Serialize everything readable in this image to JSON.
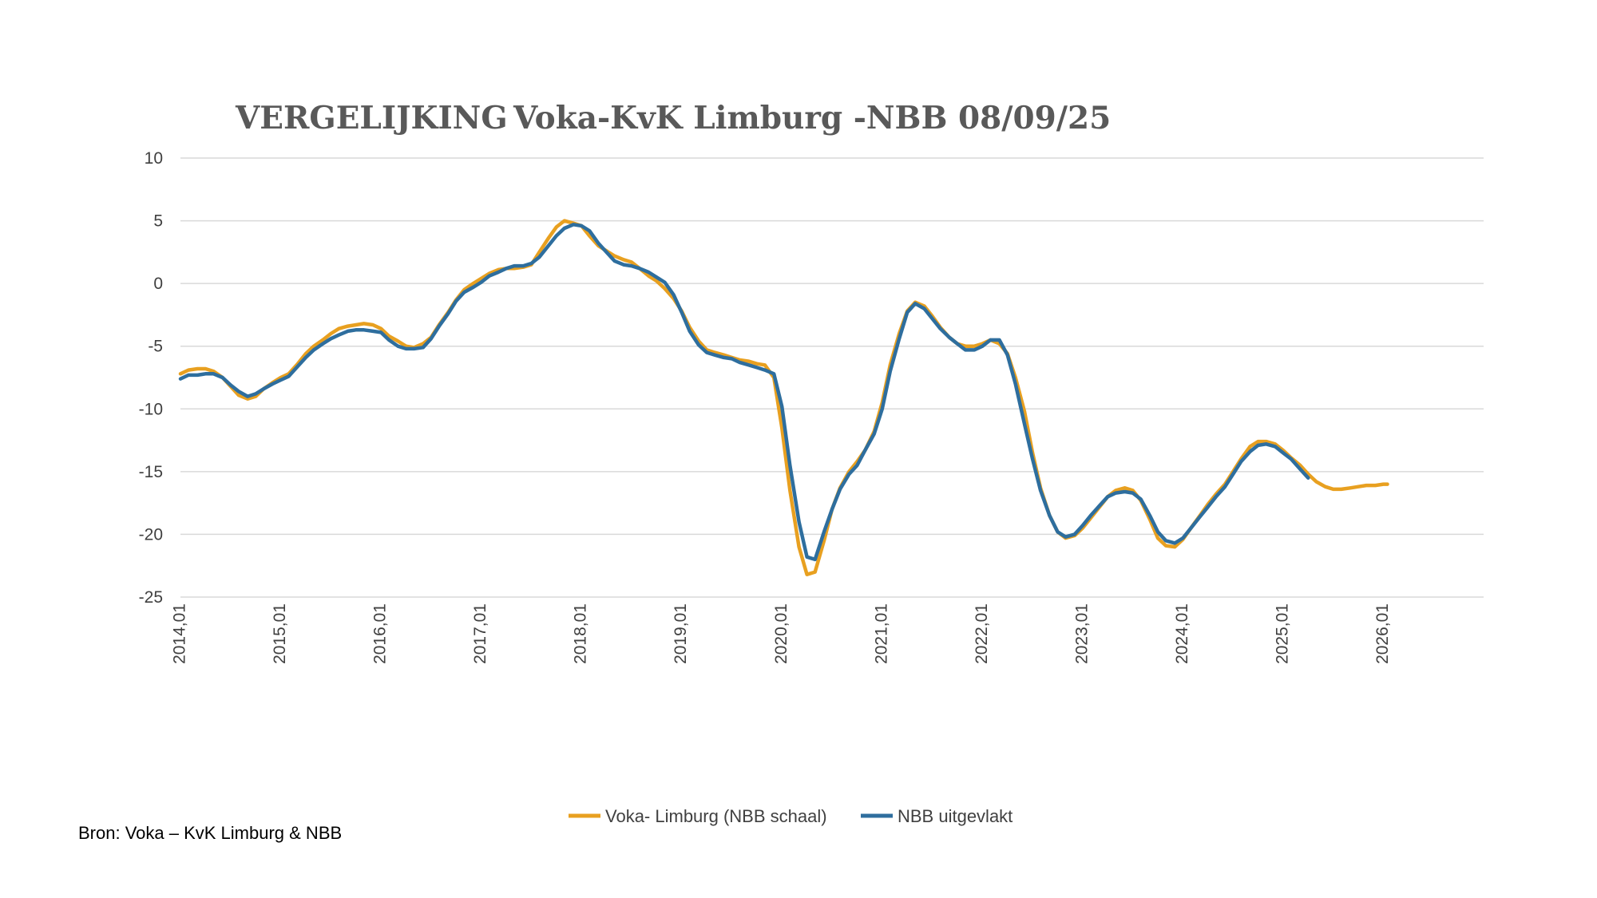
{
  "title": {
    "part1": "VERGELIJKING",
    "part2": "Voka-KvK Limburg -NBB",
    "part3": "08/09/25"
  },
  "source": "Bron: Voka – KvK Limburg & NBB",
  "colors": {
    "voka": "#E8A020",
    "nbb": "#2E6E9E",
    "grid": "#D9D9D9",
    "text": "#404040"
  },
  "chart_data": {
    "type": "line",
    "title": "VERGELIJKING Voka-KvK Limburg -NBB 08/09/25",
    "xlabel": "",
    "ylabel": "",
    "ylim": [
      -25,
      10
    ],
    "yticks": [
      10,
      5,
      0,
      -5,
      -10,
      -15,
      -20,
      -25
    ],
    "xlim": [
      2014.0,
      2027.0
    ],
    "xticks": [
      {
        "x": 2014.0,
        "label": "2014,01"
      },
      {
        "x": 2015.0,
        "label": "2015,01"
      },
      {
        "x": 2016.0,
        "label": "2016,01"
      },
      {
        "x": 2017.0,
        "label": "2017,01"
      },
      {
        "x": 2018.0,
        "label": "2018,01"
      },
      {
        "x": 2019.0,
        "label": "2019,01"
      },
      {
        "x": 2020.0,
        "label": "2020,01"
      },
      {
        "x": 2021.0,
        "label": "2021,01"
      },
      {
        "x": 2022.0,
        "label": "2022,01"
      },
      {
        "x": 2023.0,
        "label": "2023,01"
      },
      {
        "x": 2024.0,
        "label": "2024,01"
      },
      {
        "x": 2025.0,
        "label": "2025,01"
      },
      {
        "x": 2026.0,
        "label": "2026,01"
      }
    ],
    "grid": true,
    "legend": "bottom",
    "series": [
      {
        "name": "Voka- Limburg (NBB schaal)",
        "color": "#E8A020",
        "points": [
          [
            2014.0,
            -7.2
          ],
          [
            2014.08,
            -6.9
          ],
          [
            2014.17,
            -6.8
          ],
          [
            2014.25,
            -6.8
          ],
          [
            2014.33,
            -7.0
          ],
          [
            2014.42,
            -7.5
          ],
          [
            2014.5,
            -8.2
          ],
          [
            2014.58,
            -8.9
          ],
          [
            2014.67,
            -9.2
          ],
          [
            2014.75,
            -9.0
          ],
          [
            2014.83,
            -8.4
          ],
          [
            2014.92,
            -7.9
          ],
          [
            2015.0,
            -7.5
          ],
          [
            2015.08,
            -7.2
          ],
          [
            2015.17,
            -6.4
          ],
          [
            2015.25,
            -5.6
          ],
          [
            2015.33,
            -5.0
          ],
          [
            2015.42,
            -4.5
          ],
          [
            2015.5,
            -4.0
          ],
          [
            2015.58,
            -3.6
          ],
          [
            2015.67,
            -3.4
          ],
          [
            2015.75,
            -3.3
          ],
          [
            2015.83,
            -3.2
          ],
          [
            2015.92,
            -3.3
          ],
          [
            2016.0,
            -3.6
          ],
          [
            2016.08,
            -4.2
          ],
          [
            2016.17,
            -4.6
          ],
          [
            2016.25,
            -5.0
          ],
          [
            2016.33,
            -5.1
          ],
          [
            2016.42,
            -4.8
          ],
          [
            2016.5,
            -4.3
          ],
          [
            2016.58,
            -3.3
          ],
          [
            2016.67,
            -2.3
          ],
          [
            2016.75,
            -1.3
          ],
          [
            2016.83,
            -0.5
          ],
          [
            2016.92,
            0.0
          ],
          [
            2017.0,
            0.4
          ],
          [
            2017.08,
            0.8
          ],
          [
            2017.17,
            1.1
          ],
          [
            2017.25,
            1.2
          ],
          [
            2017.33,
            1.2
          ],
          [
            2017.42,
            1.3
          ],
          [
            2017.5,
            1.5
          ],
          [
            2017.58,
            2.5
          ],
          [
            2017.67,
            3.6
          ],
          [
            2017.75,
            4.5
          ],
          [
            2017.83,
            5.0
          ],
          [
            2017.92,
            4.8
          ],
          [
            2018.0,
            4.6
          ],
          [
            2018.08,
            3.8
          ],
          [
            2018.17,
            3.0
          ],
          [
            2018.25,
            2.6
          ],
          [
            2018.33,
            2.2
          ],
          [
            2018.42,
            1.9
          ],
          [
            2018.5,
            1.7
          ],
          [
            2018.58,
            1.2
          ],
          [
            2018.67,
            0.6
          ],
          [
            2018.75,
            0.2
          ],
          [
            2018.83,
            -0.4
          ],
          [
            2018.92,
            -1.2
          ],
          [
            2019.0,
            -2.2
          ],
          [
            2019.08,
            -3.5
          ],
          [
            2019.17,
            -4.6
          ],
          [
            2019.25,
            -5.3
          ],
          [
            2019.33,
            -5.5
          ],
          [
            2019.42,
            -5.7
          ],
          [
            2019.5,
            -5.9
          ],
          [
            2019.58,
            -6.1
          ],
          [
            2019.67,
            -6.2
          ],
          [
            2019.75,
            -6.4
          ],
          [
            2019.83,
            -6.5
          ],
          [
            2019.92,
            -7.5
          ],
          [
            2020.0,
            -11.5
          ],
          [
            2020.08,
            -16.5
          ],
          [
            2020.17,
            -21.0
          ],
          [
            2020.25,
            -23.2
          ],
          [
            2020.33,
            -23.0
          ],
          [
            2020.42,
            -20.5
          ],
          [
            2020.5,
            -18.0
          ],
          [
            2020.58,
            -16.3
          ],
          [
            2020.67,
            -15.0
          ],
          [
            2020.75,
            -14.2
          ],
          [
            2020.83,
            -13.3
          ],
          [
            2020.92,
            -11.8
          ],
          [
            2021.0,
            -9.5
          ],
          [
            2021.08,
            -6.5
          ],
          [
            2021.17,
            -4.0
          ],
          [
            2021.25,
            -2.2
          ],
          [
            2021.33,
            -1.5
          ],
          [
            2021.42,
            -1.8
          ],
          [
            2021.5,
            -2.6
          ],
          [
            2021.58,
            -3.5
          ],
          [
            2021.67,
            -4.3
          ],
          [
            2021.75,
            -4.8
          ],
          [
            2021.83,
            -5.0
          ],
          [
            2021.92,
            -5.0
          ],
          [
            2022.0,
            -4.8
          ],
          [
            2022.08,
            -4.5
          ],
          [
            2022.17,
            -4.8
          ],
          [
            2022.25,
            -5.6
          ],
          [
            2022.33,
            -7.5
          ],
          [
            2022.42,
            -10.2
          ],
          [
            2022.5,
            -13.5
          ],
          [
            2022.58,
            -16.3
          ],
          [
            2022.67,
            -18.5
          ],
          [
            2022.75,
            -19.8
          ],
          [
            2022.83,
            -20.3
          ],
          [
            2022.92,
            -20.1
          ],
          [
            2023.0,
            -19.5
          ],
          [
            2023.08,
            -18.7
          ],
          [
            2023.17,
            -17.8
          ],
          [
            2023.25,
            -17.0
          ],
          [
            2023.33,
            -16.5
          ],
          [
            2023.42,
            -16.3
          ],
          [
            2023.5,
            -16.5
          ],
          [
            2023.58,
            -17.3
          ],
          [
            2023.67,
            -18.8
          ],
          [
            2023.75,
            -20.3
          ],
          [
            2023.83,
            -20.9
          ],
          [
            2023.92,
            -21.0
          ],
          [
            2024.0,
            -20.4
          ],
          [
            2024.08,
            -19.5
          ],
          [
            2024.17,
            -18.5
          ],
          [
            2024.25,
            -17.6
          ],
          [
            2024.33,
            -16.8
          ],
          [
            2024.42,
            -16.0
          ],
          [
            2024.5,
            -15.0
          ],
          [
            2024.58,
            -14.0
          ],
          [
            2024.67,
            -13.0
          ],
          [
            2024.75,
            -12.6
          ],
          [
            2024.83,
            -12.6
          ],
          [
            2024.92,
            -12.8
          ],
          [
            2025.0,
            -13.3
          ],
          [
            2025.08,
            -13.9
          ],
          [
            2025.17,
            -14.5
          ],
          [
            2025.25,
            -15.2
          ],
          [
            2025.33,
            -15.8
          ],
          [
            2025.42,
            -16.2
          ],
          [
            2025.5,
            -16.4
          ],
          [
            2025.58,
            -16.4
          ],
          [
            2025.67,
            -16.3
          ],
          [
            2025.75,
            -16.2
          ],
          [
            2025.83,
            -16.1
          ],
          [
            2025.92,
            -16.1
          ],
          [
            2026.0,
            -16.0
          ],
          [
            2026.04,
            -16.0
          ]
        ]
      },
      {
        "name": "NBB  uitgevlakt",
        "color": "#2E6E9E",
        "points": [
          [
            2014.0,
            -7.6
          ],
          [
            2014.08,
            -7.3
          ],
          [
            2014.17,
            -7.3
          ],
          [
            2014.25,
            -7.2
          ],
          [
            2014.33,
            -7.2
          ],
          [
            2014.42,
            -7.5
          ],
          [
            2014.5,
            -8.1
          ],
          [
            2014.58,
            -8.6
          ],
          [
            2014.67,
            -9.0
          ],
          [
            2014.75,
            -8.8
          ],
          [
            2014.83,
            -8.4
          ],
          [
            2014.92,
            -8.0
          ],
          [
            2015.0,
            -7.7
          ],
          [
            2015.08,
            -7.4
          ],
          [
            2015.17,
            -6.6
          ],
          [
            2015.25,
            -5.9
          ],
          [
            2015.33,
            -5.3
          ],
          [
            2015.42,
            -4.8
          ],
          [
            2015.5,
            -4.4
          ],
          [
            2015.58,
            -4.1
          ],
          [
            2015.67,
            -3.8
          ],
          [
            2015.75,
            -3.7
          ],
          [
            2015.83,
            -3.7
          ],
          [
            2015.92,
            -3.8
          ],
          [
            2016.0,
            -3.9
          ],
          [
            2016.08,
            -4.5
          ],
          [
            2016.17,
            -5.0
          ],
          [
            2016.25,
            -5.2
          ],
          [
            2016.33,
            -5.2
          ],
          [
            2016.42,
            -5.1
          ],
          [
            2016.5,
            -4.4
          ],
          [
            2016.58,
            -3.4
          ],
          [
            2016.67,
            -2.4
          ],
          [
            2016.75,
            -1.4
          ],
          [
            2016.83,
            -0.7
          ],
          [
            2016.92,
            -0.3
          ],
          [
            2017.0,
            0.1
          ],
          [
            2017.08,
            0.6
          ],
          [
            2017.17,
            0.9
          ],
          [
            2017.25,
            1.2
          ],
          [
            2017.33,
            1.4
          ],
          [
            2017.42,
            1.4
          ],
          [
            2017.5,
            1.6
          ],
          [
            2017.58,
            2.1
          ],
          [
            2017.67,
            3.0
          ],
          [
            2017.75,
            3.8
          ],
          [
            2017.83,
            4.4
          ],
          [
            2017.92,
            4.7
          ],
          [
            2018.0,
            4.6
          ],
          [
            2018.08,
            4.2
          ],
          [
            2018.17,
            3.2
          ],
          [
            2018.25,
            2.5
          ],
          [
            2018.33,
            1.8
          ],
          [
            2018.42,
            1.5
          ],
          [
            2018.5,
            1.4
          ],
          [
            2018.58,
            1.2
          ],
          [
            2018.67,
            0.9
          ],
          [
            2018.75,
            0.5
          ],
          [
            2018.83,
            0.1
          ],
          [
            2018.92,
            -0.9
          ],
          [
            2019.0,
            -2.3
          ],
          [
            2019.08,
            -3.8
          ],
          [
            2019.17,
            -4.9
          ],
          [
            2019.25,
            -5.5
          ],
          [
            2019.33,
            -5.7
          ],
          [
            2019.42,
            -5.9
          ],
          [
            2019.5,
            -6.0
          ],
          [
            2019.58,
            -6.3
          ],
          [
            2019.67,
            -6.5
          ],
          [
            2019.75,
            -6.7
          ],
          [
            2019.83,
            -6.9
          ],
          [
            2019.92,
            -7.2
          ],
          [
            2020.0,
            -9.8
          ],
          [
            2020.08,
            -14.5
          ],
          [
            2020.17,
            -19.0
          ],
          [
            2020.25,
            -21.8
          ],
          [
            2020.33,
            -22.0
          ],
          [
            2020.42,
            -19.8
          ],
          [
            2020.5,
            -18.0
          ],
          [
            2020.58,
            -16.4
          ],
          [
            2020.67,
            -15.2
          ],
          [
            2020.75,
            -14.5
          ],
          [
            2020.83,
            -13.3
          ],
          [
            2020.92,
            -12.0
          ],
          [
            2021.0,
            -10.0
          ],
          [
            2021.08,
            -7.0
          ],
          [
            2021.17,
            -4.4
          ],
          [
            2021.25,
            -2.3
          ],
          [
            2021.33,
            -1.6
          ],
          [
            2021.42,
            -2.0
          ],
          [
            2021.5,
            -2.8
          ],
          [
            2021.58,
            -3.6
          ],
          [
            2021.67,
            -4.3
          ],
          [
            2021.75,
            -4.8
          ],
          [
            2021.83,
            -5.3
          ],
          [
            2021.92,
            -5.3
          ],
          [
            2022.0,
            -5.0
          ],
          [
            2022.08,
            -4.5
          ],
          [
            2022.17,
            -4.5
          ],
          [
            2022.25,
            -5.7
          ],
          [
            2022.33,
            -8.0
          ],
          [
            2022.42,
            -11.2
          ],
          [
            2022.5,
            -14.0
          ],
          [
            2022.58,
            -16.5
          ],
          [
            2022.67,
            -18.5
          ],
          [
            2022.75,
            -19.8
          ],
          [
            2022.83,
            -20.2
          ],
          [
            2022.92,
            -20.0
          ],
          [
            2023.0,
            -19.3
          ],
          [
            2023.08,
            -18.5
          ],
          [
            2023.17,
            -17.7
          ],
          [
            2023.25,
            -17.0
          ],
          [
            2023.33,
            -16.7
          ],
          [
            2023.42,
            -16.6
          ],
          [
            2023.5,
            -16.7
          ],
          [
            2023.58,
            -17.2
          ],
          [
            2023.67,
            -18.5
          ],
          [
            2023.75,
            -19.8
          ],
          [
            2023.83,
            -20.5
          ],
          [
            2023.92,
            -20.7
          ],
          [
            2024.0,
            -20.3
          ],
          [
            2024.08,
            -19.5
          ],
          [
            2024.17,
            -18.6
          ],
          [
            2024.25,
            -17.8
          ],
          [
            2024.33,
            -17.0
          ],
          [
            2024.42,
            -16.2
          ],
          [
            2024.5,
            -15.2
          ],
          [
            2024.58,
            -14.2
          ],
          [
            2024.67,
            -13.4
          ],
          [
            2024.75,
            -12.9
          ],
          [
            2024.83,
            -12.8
          ],
          [
            2024.92,
            -13.0
          ],
          [
            2025.0,
            -13.5
          ],
          [
            2025.08,
            -14.0
          ],
          [
            2025.17,
            -14.8
          ],
          [
            2025.25,
            -15.5
          ]
        ]
      }
    ]
  }
}
